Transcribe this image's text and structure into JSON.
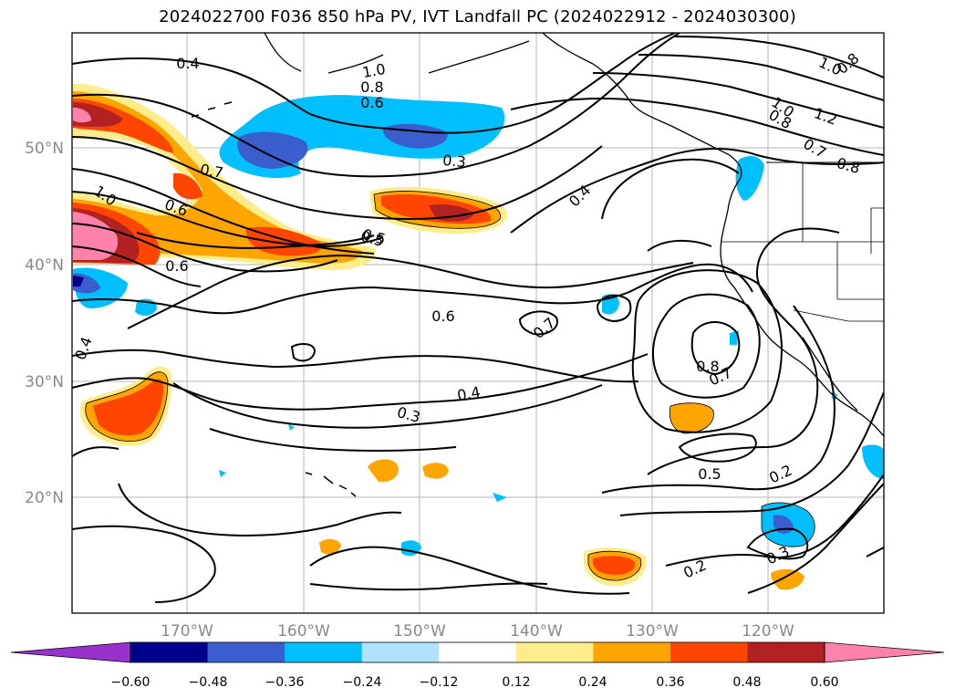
{
  "title": "2024022700 F036 850 hPa PV, IVT Landfall PC (2024022912 - 2024030300)",
  "lat_labels": [
    "50°N",
    "40°N",
    "30°N",
    "20°N"
  ],
  "lon_labels": [
    "170°W",
    "160°W",
    "150°W",
    "140°W",
    "130°W",
    "120°W"
  ],
  "colorbar": {
    "ticks": [
      "−0.60",
      "−0.48",
      "−0.36",
      "−0.24",
      "−0.12",
      "0.12",
      "0.24",
      "0.36",
      "0.48",
      "0.60"
    ],
    "colors": [
      "#9932cc",
      "#00008b",
      "#3a5fcd",
      "#00bfff",
      "#b0e2ff",
      "#ffffff",
      "#ffec8b",
      "#ffa500",
      "#ff4500",
      "#b22222",
      "#ff82ab"
    ]
  },
  "contour_labels": [
    "0.4",
    "1.0",
    "0.8",
    "0.6",
    "0.5",
    "1.0",
    "0.8",
    "1.0",
    "1.2",
    "0.8",
    "0.7",
    "0.6",
    "0.7",
    "0.8",
    "1.0",
    "0.6",
    "0.5",
    "0.3",
    "0.4",
    "0.6",
    "0.7",
    "0.4",
    "0.3",
    "0.8",
    "0.7",
    "0.5",
    "0.2",
    "0.3",
    "0.2",
    "0.4"
  ]
}
